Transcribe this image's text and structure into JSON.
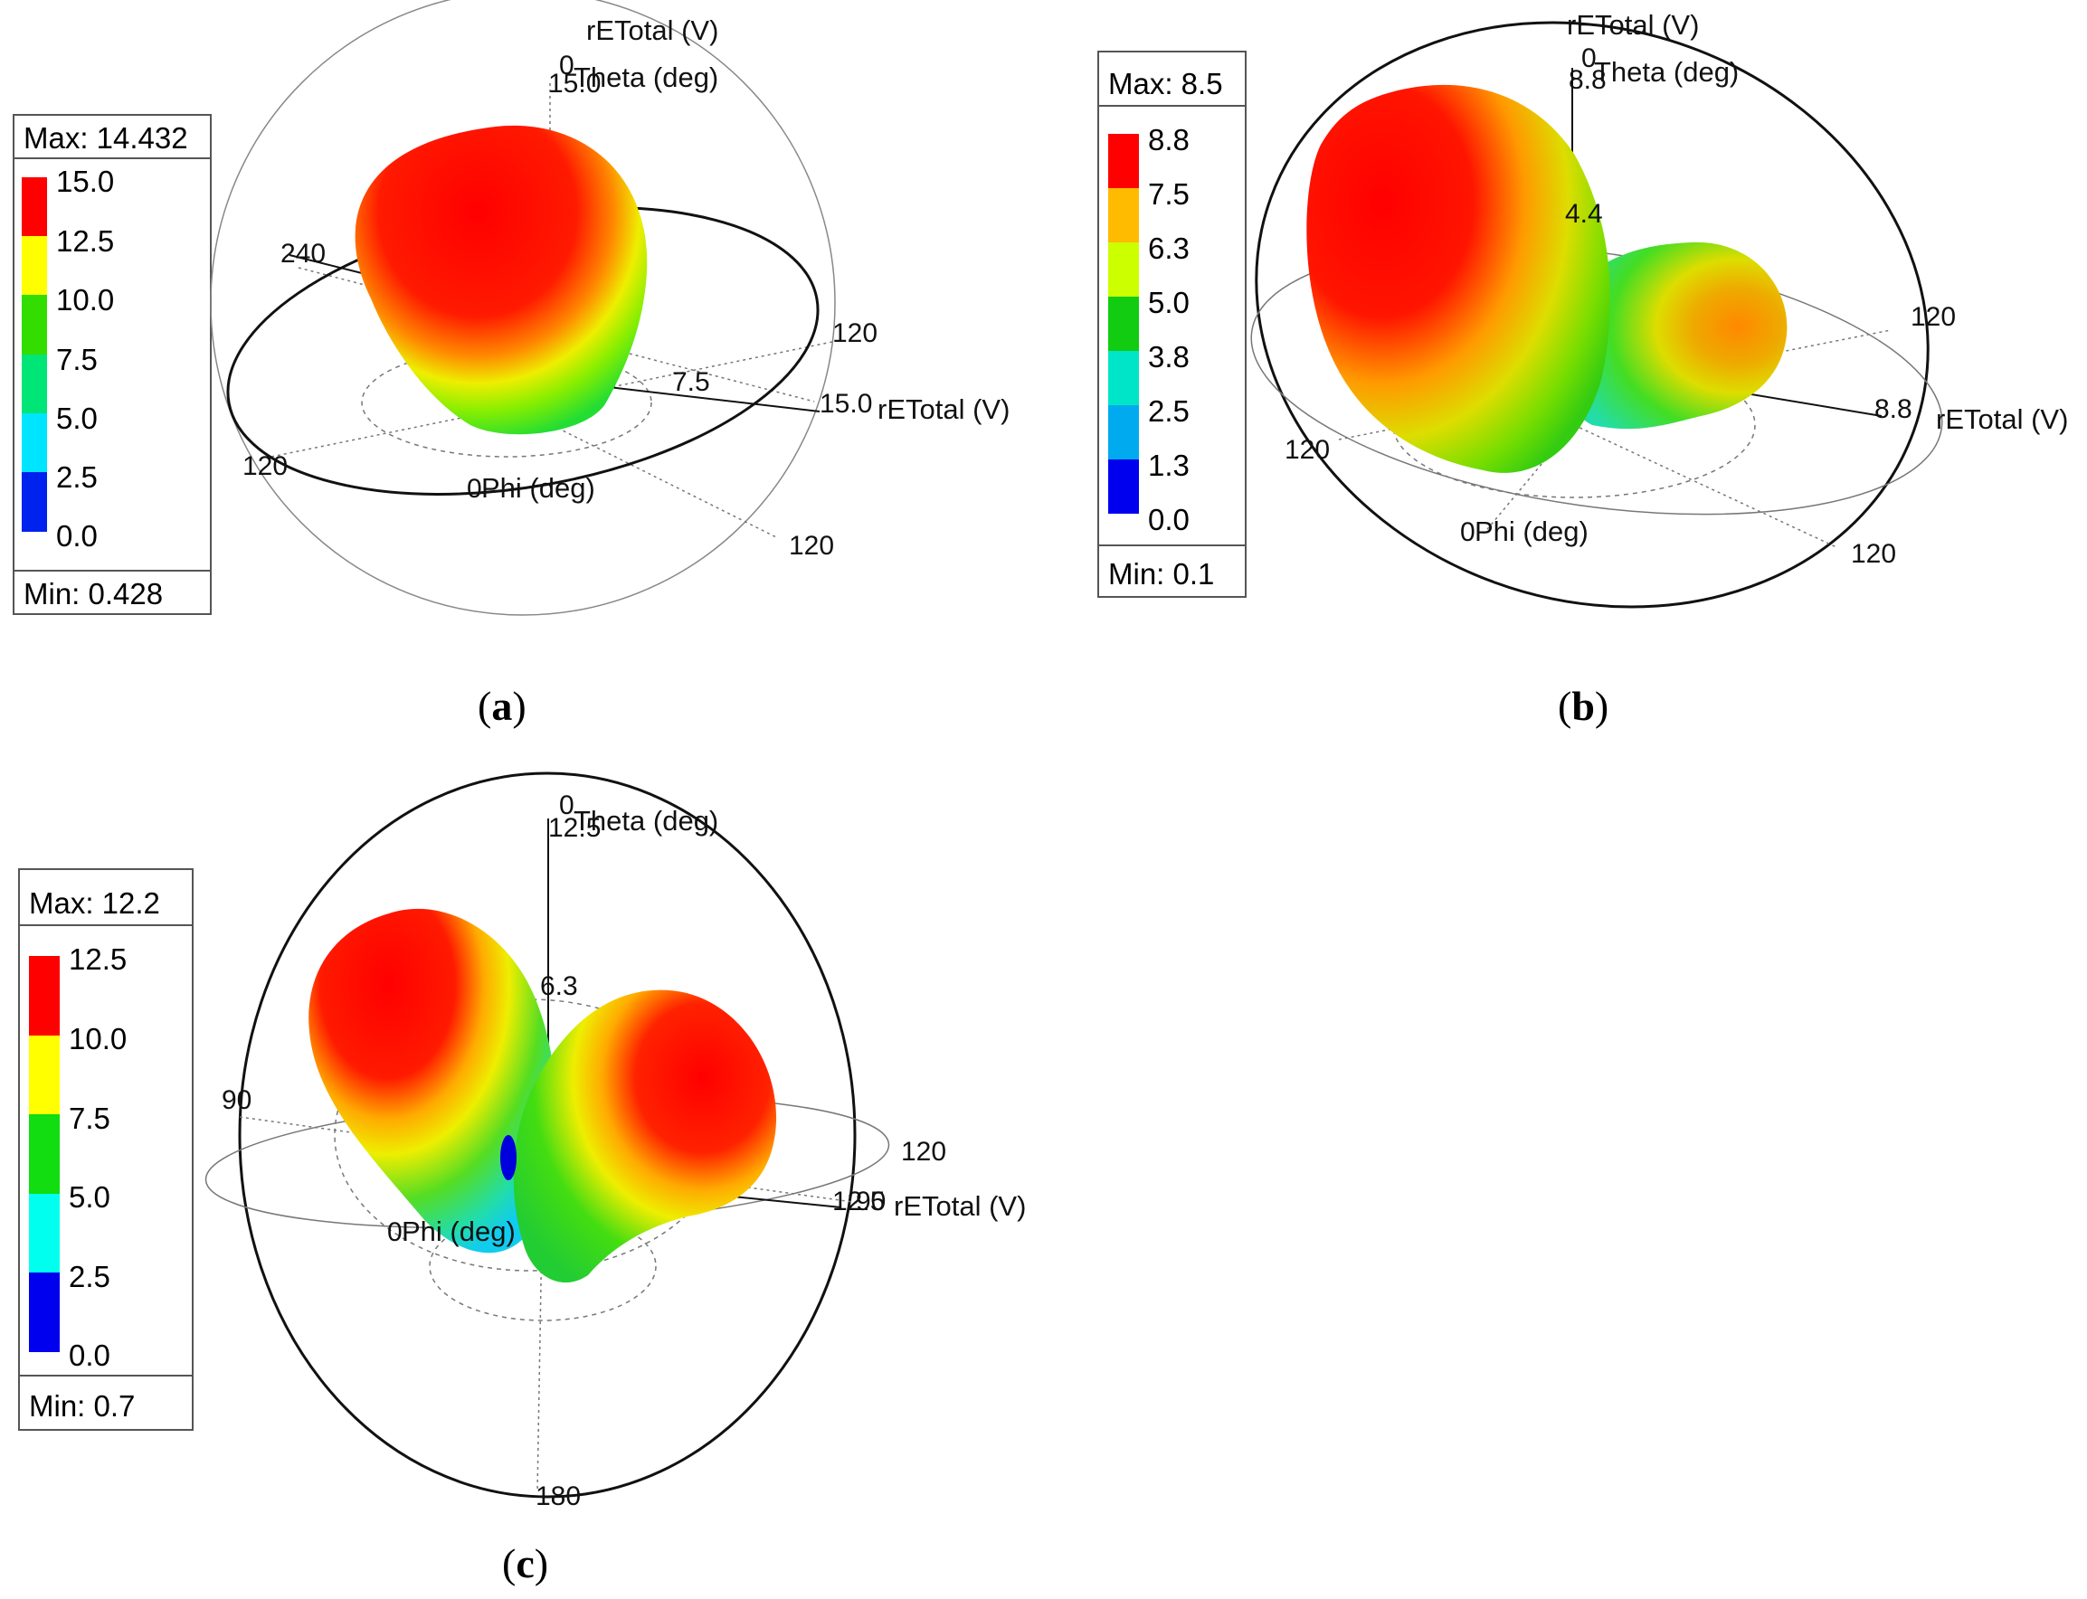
{
  "panels": [
    {
      "id": "a",
      "caption_open": "(",
      "caption_letter": "a",
      "caption_close": ")",
      "legend": {
        "max_label": "Max: 14.432",
        "min_label": "Min: 0.428",
        "ticks": [
          "15.0",
          "12.5",
          "10.0",
          "7.5",
          "5.0",
          "2.5",
          "0.0"
        ],
        "colors": [
          "#ff0000",
          "#ffff00",
          "#33dd00",
          "#00e676",
          "#00e5ff",
          "#0022ee"
        ]
      },
      "axes": {
        "top_title": "rETotal (V)",
        "theta_label": "Theta (deg)",
        "theta_zero": "0",
        "top_value": "15.0",
        "radial_title": "rETotal (V)",
        "radial_end": "15.0",
        "radial_mid": "7.5",
        "phi_label": "Phi (deg)",
        "phi_zero": "0",
        "tick_240": "240",
        "tick_120_right": "120",
        "tick_120_left": "120",
        "tick_120_bottom": "120"
      }
    },
    {
      "id": "b",
      "caption_open": "(",
      "caption_letter": "b",
      "caption_close": ")",
      "legend": {
        "max_label": "Max: 8.5",
        "min_label": "Min: 0.1",
        "ticks": [
          "8.8",
          "7.5",
          "6.3",
          "5.0",
          "3.8",
          "2.5",
          "1.3",
          "0.0"
        ],
        "colors": [
          "#ff0000",
          "#ffbb00",
          "#ccff00",
          "#11cc11",
          "#00e5c8",
          "#00aaee",
          "#0000ee"
        ]
      },
      "axes": {
        "top_title": "rETotal (V)",
        "theta_label": "Theta (deg)",
        "theta_zero": "0",
        "top_value": "8.8",
        "inner_value": "4.4",
        "radial_title": "rETotal (V)",
        "radial_end": "8.8",
        "phi_label": "Phi (deg)",
        "phi_zero": "0",
        "tick_120_left": "120",
        "tick_120_right": "120",
        "tick_120_bottom": "120"
      }
    },
    {
      "id": "c",
      "caption_open": "(",
      "caption_letter": "c",
      "caption_close": ")",
      "legend": {
        "max_label": "Max: 12.2",
        "min_label": "Min: 0.7",
        "ticks": [
          "12.5",
          "10.0",
          "7.5",
          "5.0",
          "2.5",
          "0.0"
        ],
        "colors": [
          "#ff0000",
          "#ffff00",
          "#11dd11",
          "#00ffee",
          "#0000ee"
        ]
      },
      "axes": {
        "theta_label": "Theta (deg)",
        "theta_zero": "0",
        "top_value": "12.5",
        "inner_value": "6.3",
        "radial_title": "rETotal (V)",
        "radial_end": "12.5",
        "radial_overlap": "90",
        "phi_label": "Phi (deg)",
        "phi_zero": "0",
        "tick_90": "90",
        "tick_120": "120",
        "tick_180": "180"
      }
    }
  ]
}
